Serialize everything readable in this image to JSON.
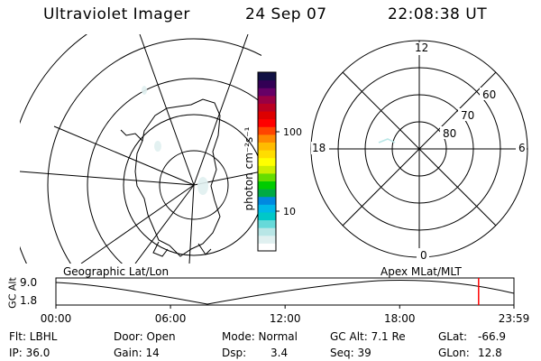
{
  "header": {
    "title": "Ultraviolet Imager",
    "date": "24 Sep 07",
    "time": "22:08:38 UT"
  },
  "colorbar": {
    "label": "photon cm⁻²s⁻¹",
    "tick_100": "100",
    "tick_10": "10",
    "colors": [
      "#ffffff",
      "#e0f0f0",
      "#b8e6e6",
      "#66d9d9",
      "#00c8c8",
      "#00b8e8",
      "#0088e0",
      "#00aa44",
      "#00cc00",
      "#66dd00",
      "#ccee00",
      "#ffff00",
      "#ffdd00",
      "#ffbb00",
      "#ff8800",
      "#ff4400",
      "#ff0000",
      "#dd0000",
      "#bb0022",
      "#990044",
      "#660066",
      "#330055",
      "#111144"
    ]
  },
  "right_map": {
    "mlt_top": "12",
    "mlt_left": "18",
    "mlt_right": "6",
    "mlt_bottom": "0",
    "lat_60": "60",
    "lat_70": "70",
    "lat_80": "80"
  },
  "orbit_plot": {
    "left_label": "Geographic Lat/Lon",
    "right_label": "Apex MLat/MLT",
    "y_label": "GC Alt",
    "y_top": "9.0",
    "y_bottom": "1.8",
    "x_ticks": [
      "00:00",
      "06:00",
      "12:00",
      "18:00",
      "23:59"
    ],
    "marker_time": "22:08"
  },
  "info": {
    "flt": "Flt: LBHL",
    "door": "Door: Open",
    "mode": "Mode: Normal",
    "gcalt": "GC Alt: 7.1 Re",
    "glat_label": "GLat:",
    "glat_value": "-66.9",
    "ip": "IP: 36.0",
    "gain": "Gain: 14",
    "dsp_label": "Dsp:",
    "dsp_value": "3.4",
    "seq": "Seq: 39",
    "glon_label": "GLon:",
    "glon_value": "12.8"
  }
}
